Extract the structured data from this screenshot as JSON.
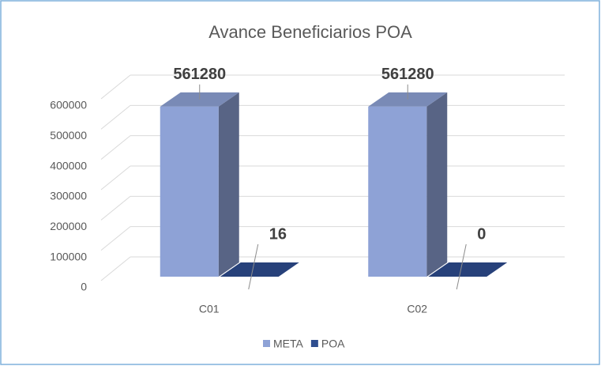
{
  "chart_data": {
    "type": "bar3d",
    "title": "Avance Beneficiarios POA",
    "categories": [
      "C01",
      "C02"
    ],
    "series": [
      {
        "name": "META",
        "color": "#8ea2d6",
        "values": [
          561280,
          561280
        ]
      },
      {
        "name": "POA",
        "color": "#2e4d8f",
        "values": [
          16,
          0
        ]
      }
    ],
    "ylim": [
      0,
      600000
    ],
    "yticks": [
      0,
      100000,
      200000,
      300000,
      400000,
      500000,
      600000
    ],
    "grid": true,
    "legend": "bottom"
  }
}
